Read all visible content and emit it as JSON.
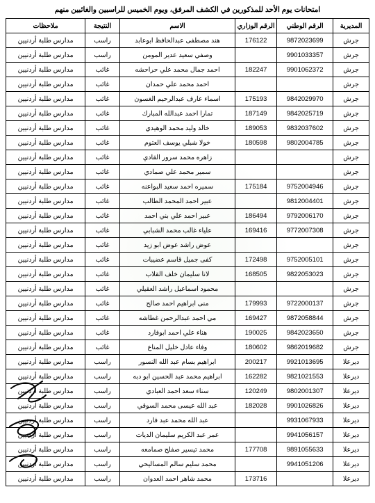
{
  "title": "امتحانات يوم الأحد للمذكورين في الكشف المرفق، ويوم الخميس للراسبين والغائبين منهم",
  "headers": {
    "dir": "المديرية",
    "nat": "الرقم الوطني",
    "min": "الرقم الوزاري",
    "name": "الاسم",
    "res": "النتيجة",
    "notes": "ملاحظات"
  },
  "notes_text": "مدارس طلبة أردنيين",
  "rows": [
    {
      "dir": "جرش",
      "nat": "9872023699",
      "min": "176122",
      "name": "هند مصطفى عبدالحافظ ابوعابد",
      "res": "راسب"
    },
    {
      "dir": "جرش",
      "nat": "9901033357",
      "min": "",
      "name": "وصفي سعيد عدير المومن",
      "res": "راسب"
    },
    {
      "dir": "جرش",
      "nat": "9901062372",
      "min": "182247",
      "name": "احمد جمال محمد علي حراحشه",
      "res": "غائب"
    },
    {
      "dir": "جرش",
      "nat": "",
      "min": "",
      "name": "احمد محمد علي حمدان",
      "res": "غائب"
    },
    {
      "dir": "جرش",
      "nat": "9842029970",
      "min": "175193",
      "name": "اسماء عارف عبدالرحيم الغسون",
      "res": "غائب"
    },
    {
      "dir": "جرش",
      "nat": "9842025719",
      "min": "187149",
      "name": "تمارا احمد عبدالله المبارك",
      "res": "غائب"
    },
    {
      "dir": "جرش",
      "nat": "9832037602",
      "min": "189053",
      "name": "خالد وليد محمد الوهيدي",
      "res": "غائب"
    },
    {
      "dir": "جرش",
      "nat": "9802004785",
      "min": "180598",
      "name": "خولا شبلي يوسف العتوم",
      "res": "غائب"
    },
    {
      "dir": "جرش",
      "nat": "",
      "min": "",
      "name": "زاهره محمد سرور القادي",
      "res": "غائب"
    },
    {
      "dir": "جرش",
      "nat": "",
      "min": "",
      "name": "سمير محمد علي صمادي",
      "res": "غائب"
    },
    {
      "dir": "جرش",
      "nat": "9752004946",
      "min": "175184",
      "name": "سميره احمد سعيد البواعنه",
      "res": "غائب"
    },
    {
      "dir": "جرش",
      "nat": "9812004401",
      "min": "",
      "name": "عبير احمد المحمد الطالب",
      "res": "غائب"
    },
    {
      "dir": "جرش",
      "nat": "9792006170",
      "min": "186494",
      "name": "عبير احمد علي بني احمد",
      "res": "غائب"
    },
    {
      "dir": "جرش",
      "nat": "9772007308",
      "min": "169416",
      "name": "علياء غالب محمد الشبابي",
      "res": "غائب"
    },
    {
      "dir": "جرش",
      "nat": "",
      "min": "",
      "name": "عوض راشد عوض ابو زيد",
      "res": "غائب"
    },
    {
      "dir": "جرش",
      "nat": "9752005101",
      "min": "172498",
      "name": "كفى جميل قاسم عضيبات",
      "res": "غائب"
    },
    {
      "dir": "جرش",
      "nat": "9822053023",
      "min": "168505",
      "name": "لانا سليمان خلف القلاب",
      "res": "غائب"
    },
    {
      "dir": "جرش",
      "nat": "",
      "min": "",
      "name": "محمود اسماعيل راشد العقيلي",
      "res": "غائب"
    },
    {
      "dir": "جرش",
      "nat": "9722000137",
      "min": "179993",
      "name": "منى ابراهيم احمد صالح",
      "res": "غائب"
    },
    {
      "dir": "جرش",
      "nat": "9872058844",
      "min": "169427",
      "name": "مي احمد عبدالرحمن غطاشه",
      "res": "غائب"
    },
    {
      "dir": "جرش",
      "nat": "9842023650",
      "min": "190025",
      "name": "هناء علي احمد ابوفارد",
      "res": "غائب"
    },
    {
      "dir": "جرش",
      "nat": "9862019682",
      "min": "180602",
      "name": "وفاء عادل خليل المناع",
      "res": "غائب"
    },
    {
      "dir": "ديرعلا",
      "nat": "9921013695",
      "min": "200217",
      "name": "ابراهيم بسام عبد الله النسور",
      "res": "راسب"
    },
    {
      "dir": "ديرعلا",
      "nat": "9821021553",
      "min": "162282",
      "name": "ابراهيم محمد عبد الحسين ابو دبه",
      "res": "راسب"
    },
    {
      "dir": "ديرعلا",
      "nat": "9802001307",
      "min": "120249",
      "name": "سناء سعد احمد العبادي",
      "res": "راسب"
    },
    {
      "dir": "ديرعلا",
      "nat": "9901026826",
      "min": "182028",
      "name": "عبد الله عيسى محمد السوقي",
      "res": "راسب"
    },
    {
      "dir": "ديرعلا",
      "nat": "9931067933",
      "min": "",
      "name": "عبد الله محمد عبد فارد",
      "res": "راسب"
    },
    {
      "dir": "ديرعلا",
      "nat": "9941056157",
      "min": "",
      "name": "عمر عبد الكريم سليمان الديات",
      "res": "راسب"
    },
    {
      "dir": "ديرعلا",
      "nat": "9891055633",
      "min": "177708",
      "name": "محمد تيسير صفلح صمامعه",
      "res": "راسب"
    },
    {
      "dir": "ديرعلا",
      "nat": "9941051206",
      "min": "",
      "name": "محمد سليم سالم المساليحي",
      "res": "راسب"
    },
    {
      "dir": "ديرعلا",
      "nat": "",
      "min": "173716",
      "name": "محمد شاهر احمد العدوان",
      "res": "راسب"
    }
  ],
  "colors": {
    "border": "#000000",
    "text": "#000000",
    "bg": "#ffffff",
    "wm": "#e8f2e8"
  }
}
